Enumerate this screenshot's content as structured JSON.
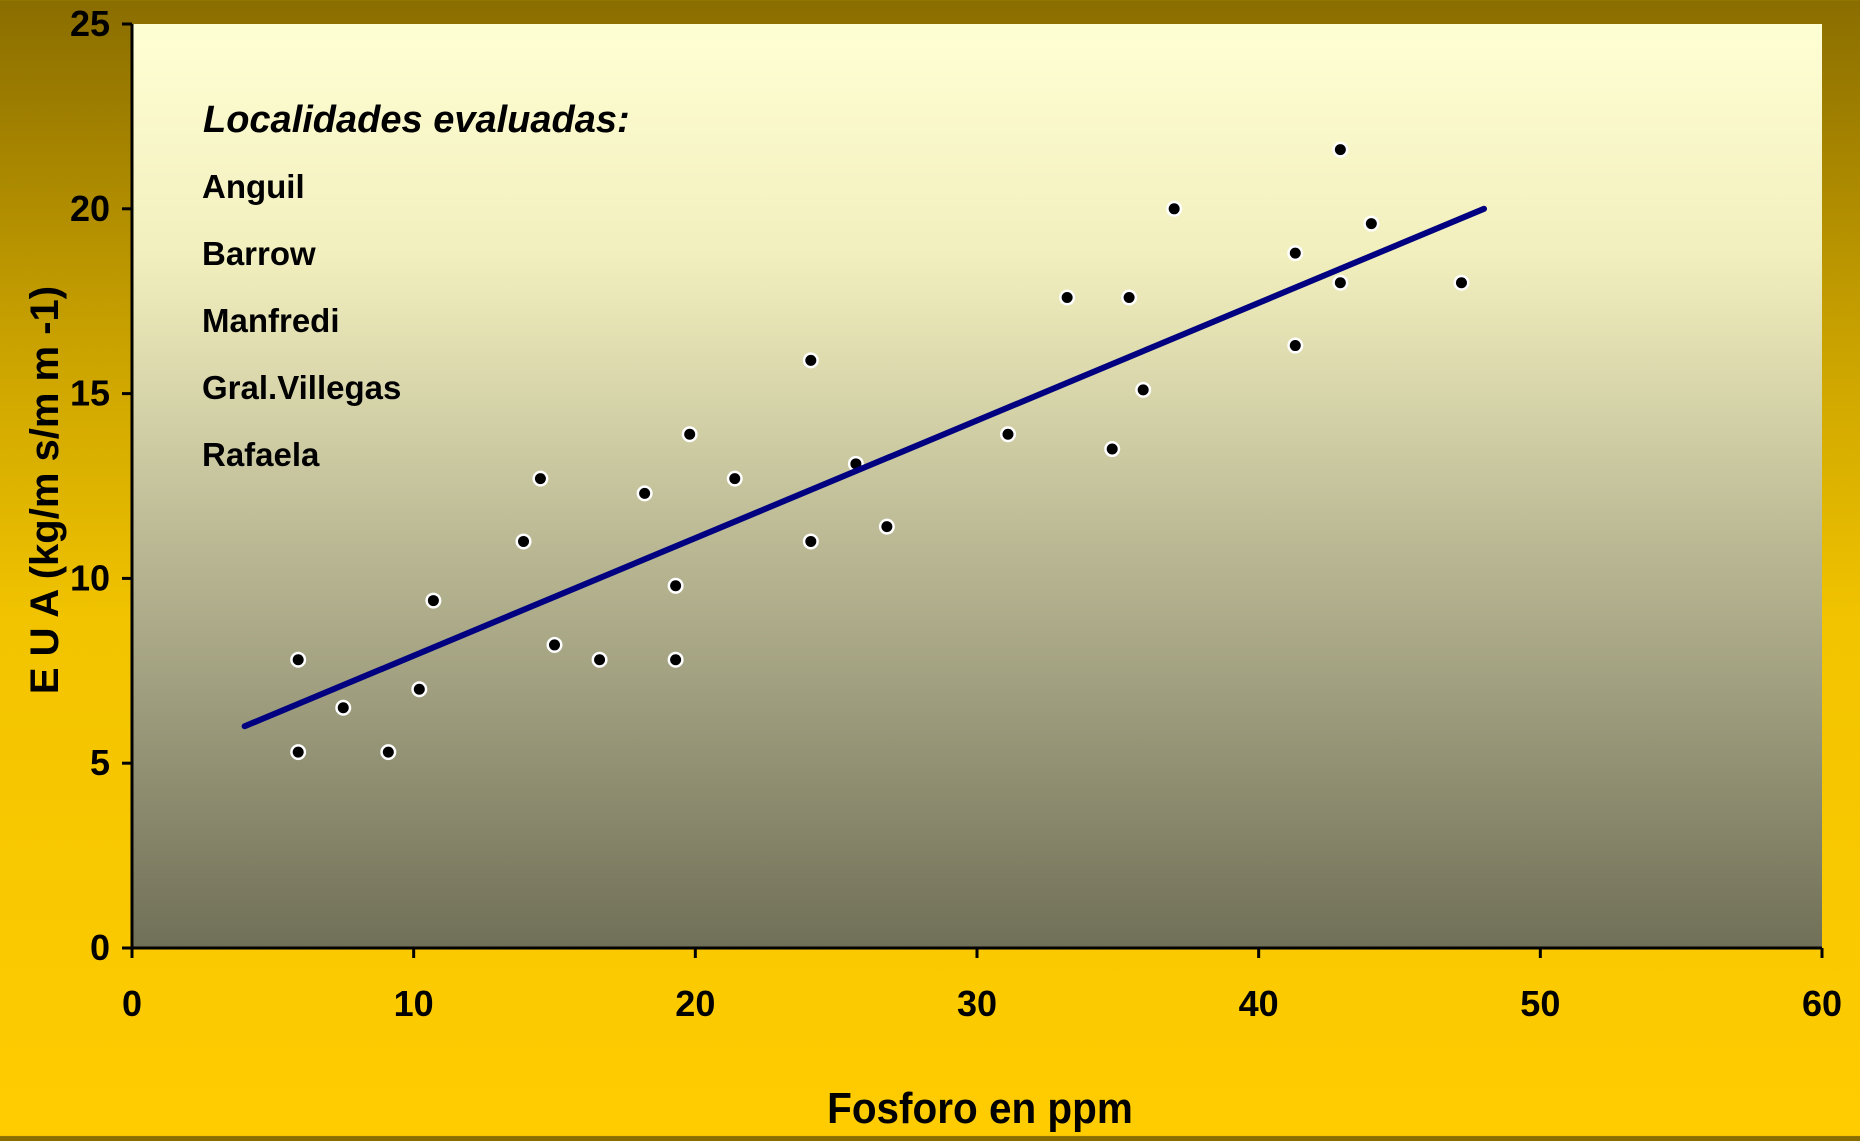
{
  "chart_data": {
    "type": "scatter",
    "xlabel": "Fosforo en ppm",
    "ylabel": "E U A  (kg/m s/m m  -1)",
    "xlim": [
      0,
      60
    ],
    "ylim": [
      0,
      25
    ],
    "x_ticks": [
      0,
      10,
      20,
      30,
      40,
      50,
      60
    ],
    "y_ticks": [
      0,
      5,
      10,
      15,
      20,
      25
    ],
    "grid": false,
    "legend": {
      "title": "Localidades evaluadas:",
      "items": [
        "Anguil",
        "Barrow",
        "Manfredi",
        "Gral.Villegas",
        "Rafaela"
      ],
      "placement": "top-left"
    },
    "points": [
      {
        "x": 5.9,
        "y": 7.8
      },
      {
        "x": 5.9,
        "y": 5.3
      },
      {
        "x": 7.5,
        "y": 6.5
      },
      {
        "x": 9.1,
        "y": 5.3
      },
      {
        "x": 10.2,
        "y": 7.0
      },
      {
        "x": 10.7,
        "y": 9.4
      },
      {
        "x": 13.9,
        "y": 11.0
      },
      {
        "x": 14.5,
        "y": 12.7
      },
      {
        "x": 15.0,
        "y": 8.2
      },
      {
        "x": 16.6,
        "y": 7.8
      },
      {
        "x": 18.2,
        "y": 12.3
      },
      {
        "x": 19.3,
        "y": 9.8
      },
      {
        "x": 19.3,
        "y": 7.8
      },
      {
        "x": 19.8,
        "y": 13.9
      },
      {
        "x": 21.4,
        "y": 12.7
      },
      {
        "x": 24.1,
        "y": 15.9
      },
      {
        "x": 24.1,
        "y": 11.0
      },
      {
        "x": 25.7,
        "y": 13.1
      },
      {
        "x": 26.8,
        "y": 11.4
      },
      {
        "x": 31.1,
        "y": 13.9
      },
      {
        "x": 33.2,
        "y": 17.6
      },
      {
        "x": 34.8,
        "y": 13.5
      },
      {
        "x": 35.4,
        "y": 17.6
      },
      {
        "x": 35.9,
        "y": 15.1
      },
      {
        "x": 37.0,
        "y": 20.0
      },
      {
        "x": 41.3,
        "y": 18.8
      },
      {
        "x": 41.3,
        "y": 16.3
      },
      {
        "x": 42.9,
        "y": 21.6
      },
      {
        "x": 42.9,
        "y": 18.0
      },
      {
        "x": 44.0,
        "y": 19.6
      },
      {
        "x": 47.2,
        "y": 18.0
      }
    ],
    "trendline": {
      "x": [
        4,
        48
      ],
      "y": [
        6.0,
        20.0
      ]
    },
    "colors": {
      "trendline": "#000080",
      "points": "#000000",
      "plot_top": "#ffffd4",
      "plot_bottom": "#707058"
    }
  }
}
